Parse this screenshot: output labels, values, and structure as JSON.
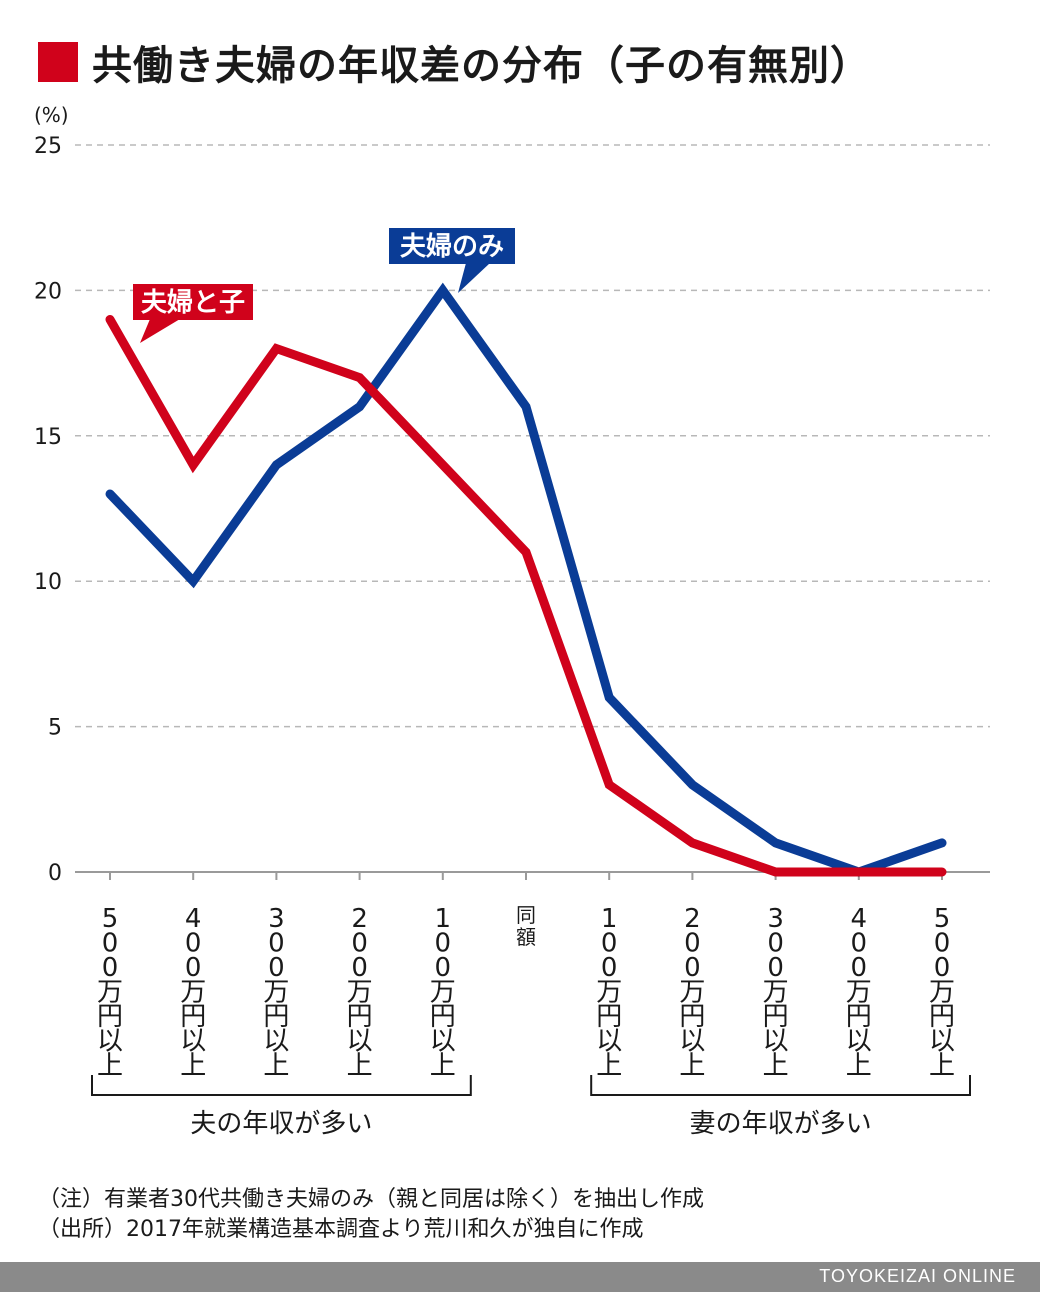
{
  "title": "共働き夫婦の年収差の分布（子の有無別）",
  "colors": {
    "accent": "#d0021b",
    "blue": "#0a3c96",
    "grid": "#b8b8b8",
    "footer": "#8a8a8a"
  },
  "chart_data": {
    "type": "line",
    "ylabel": "(%)",
    "ylim": [
      0,
      25
    ],
    "yticks": [
      0,
      5,
      10,
      15,
      20,
      25
    ],
    "grid": true,
    "categories": [
      "500万円以上",
      "400万円以上",
      "300万円以上",
      "200万円以上",
      "100万円以上",
      "同額",
      "100万円以上",
      "200万円以上",
      "300万円以上",
      "400万円以上",
      "500万円以上"
    ],
    "groups": [
      {
        "label": "夫の年収が多い",
        "range": [
          0,
          4
        ]
      },
      {
        "label": "妻の年収が多い",
        "range": [
          6,
          10
        ]
      }
    ],
    "series": [
      {
        "name": "夫婦と子",
        "color": "#d0021b",
        "values": [
          19,
          14,
          18,
          17,
          14,
          11,
          3,
          1,
          0,
          0,
          0
        ]
      },
      {
        "name": "夫婦のみ",
        "color": "#0a3c96",
        "values": [
          13,
          10,
          14,
          16,
          20,
          16,
          6,
          3,
          1,
          0,
          1
        ]
      }
    ]
  },
  "notes": {
    "note1": "（注）有業者30代共働き夫婦のみ（親と同居は除く）を抽出し作成",
    "note2": "（出所）2017年就業構造基本調査より荒川和久が独自に作成"
  },
  "footer": {
    "brand": "TOYOKEIZAI ONLINE"
  }
}
